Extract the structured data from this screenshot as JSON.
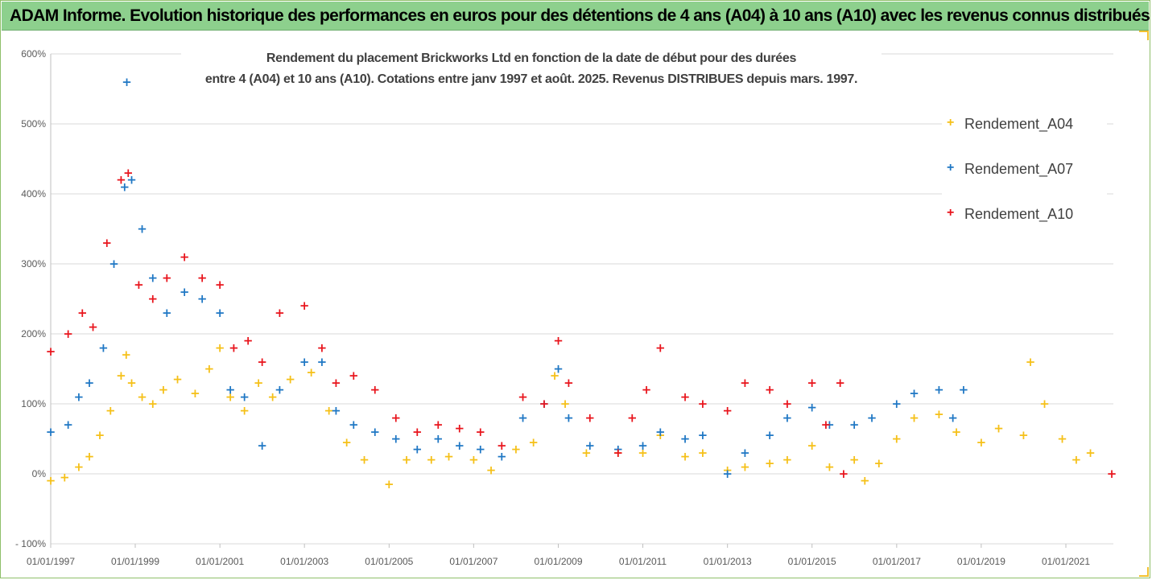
{
  "banner": {
    "title": "ADAM Informe. Evolution historique des performances en euros pour des détentions de 4 ans (A04) à 10 ans (A10) avec les revenus connus distribués"
  },
  "colors": {
    "banner_bg": "#8dd08d",
    "A04": "#f5c018",
    "A07": "#1f77c4",
    "A10": "#e8141c",
    "gridline": "#d9d9d9",
    "axis_text": "#595959"
  },
  "chart_data": {
    "type": "scatter",
    "title_line1": "Rendement du placement Brickworks Ltd en fonction de la date de début pour des durées",
    "title_line2": "entre 4 (A04) et 10 ans (A10). Cotations entre janv 1997 et août. 2025. Revenus DISTRIBUES depuis mars. 1997.",
    "marker": "+",
    "ylim": [
      -1.0,
      6.0
    ],
    "y_tick_labels": [
      "600%",
      "500%",
      "400%",
      "300%",
      "200%",
      "100%",
      "0%",
      "- 100%"
    ],
    "y_tick_values": [
      6,
      5,
      4,
      3,
      2,
      1,
      0,
      -1
    ],
    "xlim": [
      "1997-01-01",
      "2022-02-15"
    ],
    "x_tick_labels": [
      "01/01/1997",
      "01/01/1999",
      "01/01/2001",
      "01/01/2003",
      "01/01/2005",
      "01/01/2007",
      "01/01/2009",
      "01/01/2011",
      "01/01/2013",
      "01/01/2015",
      "01/01/2017",
      "01/01/2019",
      "01/01/2021"
    ],
    "x_tick_values": [
      "1997-01-01",
      "1999-01-01",
      "2001-01-01",
      "2003-01-01",
      "2005-01-01",
      "2007-01-01",
      "2009-01-01",
      "2011-01-01",
      "2013-01-01",
      "2015-01-01",
      "2017-01-01",
      "2019-01-01",
      "2021-01-01"
    ],
    "legend_position": "right",
    "grid": "horizontal",
    "series": [
      {
        "name": "Rendement_A04",
        "color": "#f5c018",
        "points": [
          [
            "1997-01-01",
            -0.1
          ],
          [
            "1997-05-01",
            -0.05
          ],
          [
            "1997-09-01",
            0.1
          ],
          [
            "1997-12-01",
            0.25
          ],
          [
            "1998-03-01",
            0.55
          ],
          [
            "1998-06-01",
            0.9
          ],
          [
            "1998-09-01",
            1.4
          ],
          [
            "1998-10-15",
            1.7
          ],
          [
            "1998-12-01",
            1.3
          ],
          [
            "1999-03-01",
            1.1
          ],
          [
            "1999-06-01",
            1.0
          ],
          [
            "1999-09-01",
            1.2
          ],
          [
            "2000-01-01",
            1.35
          ],
          [
            "2000-06-01",
            1.15
          ],
          [
            "2000-10-01",
            1.5
          ],
          [
            "2001-01-01",
            1.8
          ],
          [
            "2001-04-01",
            1.1
          ],
          [
            "2001-08-01",
            0.9
          ],
          [
            "2001-12-01",
            1.3
          ],
          [
            "2002-04-01",
            1.1
          ],
          [
            "2002-09-01",
            1.35
          ],
          [
            "2003-03-01",
            1.45
          ],
          [
            "2003-08-01",
            0.9
          ],
          [
            "2004-01-01",
            0.45
          ],
          [
            "2004-06-01",
            0.2
          ],
          [
            "2005-01-01",
            -0.15
          ],
          [
            "2005-06-01",
            0.2
          ],
          [
            "2006-01-01",
            0.2
          ],
          [
            "2006-06-01",
            0.25
          ],
          [
            "2007-01-01",
            0.2
          ],
          [
            "2007-06-01",
            0.05
          ],
          [
            "2008-01-01",
            0.35
          ],
          [
            "2008-06-01",
            0.45
          ],
          [
            "2008-12-01",
            1.4
          ],
          [
            "2009-03-01",
            1.0
          ],
          [
            "2009-09-01",
            0.3
          ],
          [
            "2010-06-01",
            0.3
          ],
          [
            "2011-01-01",
            0.3
          ],
          [
            "2011-06-01",
            0.55
          ],
          [
            "2012-01-01",
            0.25
          ],
          [
            "2012-06-01",
            0.3
          ],
          [
            "2013-01-01",
            0.05
          ],
          [
            "2013-06-01",
            0.1
          ],
          [
            "2014-01-01",
            0.15
          ],
          [
            "2014-06-01",
            0.2
          ],
          [
            "2015-01-01",
            0.4
          ],
          [
            "2015-06-01",
            0.1
          ],
          [
            "2016-01-01",
            0.2
          ],
          [
            "2016-04-01",
            -0.1
          ],
          [
            "2016-08-01",
            0.15
          ],
          [
            "2017-01-01",
            0.5
          ],
          [
            "2017-06-01",
            0.8
          ],
          [
            "2018-01-01",
            0.85
          ],
          [
            "2018-06-01",
            0.6
          ],
          [
            "2019-01-01",
            0.45
          ],
          [
            "2019-06-01",
            0.65
          ],
          [
            "2020-01-01",
            0.55
          ],
          [
            "2020-03-01",
            1.6
          ],
          [
            "2020-07-01",
            1.0
          ],
          [
            "2020-12-01",
            0.5
          ],
          [
            "2021-04-01",
            0.2
          ],
          [
            "2021-08-01",
            0.3
          ]
        ]
      },
      {
        "name": "Rendement_A07",
        "color": "#1f77c4",
        "points": [
          [
            "1997-01-01",
            0.6
          ],
          [
            "1997-06-01",
            0.7
          ],
          [
            "1997-09-01",
            1.1
          ],
          [
            "1997-12-01",
            1.3
          ],
          [
            "1998-04-01",
            1.8
          ],
          [
            "1998-07-01",
            3.0
          ],
          [
            "1998-10-01",
            4.1
          ],
          [
            "1998-10-20",
            5.6
          ],
          [
            "1998-12-01",
            4.2
          ],
          [
            "1999-03-01",
            3.5
          ],
          [
            "1999-06-01",
            2.8
          ],
          [
            "1999-10-01",
            2.3
          ],
          [
            "2000-03-01",
            2.6
          ],
          [
            "2000-08-01",
            2.5
          ],
          [
            "2001-01-01",
            2.3
          ],
          [
            "2001-04-01",
            1.2
          ],
          [
            "2001-08-01",
            1.1
          ],
          [
            "2002-01-01",
            0.4
          ],
          [
            "2002-06-01",
            1.2
          ],
          [
            "2003-01-01",
            1.6
          ],
          [
            "2003-06-01",
            1.6
          ],
          [
            "2003-10-01",
            0.9
          ],
          [
            "2004-03-01",
            0.7
          ],
          [
            "2004-09-01",
            0.6
          ],
          [
            "2005-03-01",
            0.5
          ],
          [
            "2005-09-01",
            0.35
          ],
          [
            "2006-03-01",
            0.5
          ],
          [
            "2006-09-01",
            0.4
          ],
          [
            "2007-03-01",
            0.35
          ],
          [
            "2007-09-01",
            0.25
          ],
          [
            "2008-03-01",
            0.8
          ],
          [
            "2008-09-01",
            1.0
          ],
          [
            "2009-01-01",
            1.5
          ],
          [
            "2009-04-01",
            0.8
          ],
          [
            "2009-10-01",
            0.4
          ],
          [
            "2010-06-01",
            0.35
          ],
          [
            "2011-01-01",
            0.4
          ],
          [
            "2011-06-01",
            0.6
          ],
          [
            "2012-01-01",
            0.5
          ],
          [
            "2012-06-01",
            0.55
          ],
          [
            "2013-01-01",
            0.0
          ],
          [
            "2013-06-01",
            0.3
          ],
          [
            "2014-01-01",
            0.55
          ],
          [
            "2014-06-01",
            0.8
          ],
          [
            "2015-01-01",
            0.95
          ],
          [
            "2015-06-01",
            0.7
          ],
          [
            "2016-01-01",
            0.7
          ],
          [
            "2016-06-01",
            0.8
          ],
          [
            "2017-01-01",
            1.0
          ],
          [
            "2017-06-01",
            1.15
          ],
          [
            "2018-01-01",
            1.2
          ],
          [
            "2018-05-01",
            0.8
          ],
          [
            "2018-08-01",
            1.2
          ]
        ]
      },
      {
        "name": "Rendement_A10",
        "color": "#e8141c",
        "points": [
          [
            "1997-01-01",
            1.75
          ],
          [
            "1997-06-01",
            2.0
          ],
          [
            "1997-10-01",
            2.3
          ],
          [
            "1998-01-01",
            2.1
          ],
          [
            "1998-05-01",
            3.3
          ],
          [
            "1998-09-01",
            4.2
          ],
          [
            "1998-11-01",
            4.3
          ],
          [
            "1999-02-01",
            2.7
          ],
          [
            "1999-06-01",
            2.5
          ],
          [
            "1999-10-01",
            2.8
          ],
          [
            "2000-03-01",
            3.1
          ],
          [
            "2000-08-01",
            2.8
          ],
          [
            "2001-01-01",
            2.7
          ],
          [
            "2001-05-01",
            1.8
          ],
          [
            "2001-09-01",
            1.9
          ],
          [
            "2002-01-01",
            1.6
          ],
          [
            "2002-06-01",
            2.3
          ],
          [
            "2003-01-01",
            2.4
          ],
          [
            "2003-06-01",
            1.8
          ],
          [
            "2003-10-01",
            1.3
          ],
          [
            "2004-03-01",
            1.4
          ],
          [
            "2004-09-01",
            1.2
          ],
          [
            "2005-03-01",
            0.8
          ],
          [
            "2005-09-01",
            0.6
          ],
          [
            "2006-03-01",
            0.7
          ],
          [
            "2006-09-01",
            0.65
          ],
          [
            "2007-03-01",
            0.6
          ],
          [
            "2007-09-01",
            0.4
          ],
          [
            "2008-03-01",
            1.1
          ],
          [
            "2008-09-01",
            1.0
          ],
          [
            "2009-01-01",
            1.9
          ],
          [
            "2009-04-01",
            1.3
          ],
          [
            "2009-10-01",
            0.8
          ],
          [
            "2010-06-01",
            0.3
          ],
          [
            "2010-10-01",
            0.8
          ],
          [
            "2011-02-01",
            1.2
          ],
          [
            "2011-06-01",
            1.8
          ],
          [
            "2012-01-01",
            1.1
          ],
          [
            "2012-06-01",
            1.0
          ],
          [
            "2013-01-01",
            0.9
          ],
          [
            "2013-06-01",
            1.3
          ],
          [
            "2014-01-01",
            1.2
          ],
          [
            "2014-06-01",
            1.0
          ],
          [
            "2015-01-01",
            1.3
          ],
          [
            "2015-05-01",
            0.7
          ],
          [
            "2015-09-01",
            1.3
          ],
          [
            "2015-10-01",
            0.0
          ],
          [
            "2022-02-01",
            0.0
          ]
        ]
      }
    ]
  }
}
